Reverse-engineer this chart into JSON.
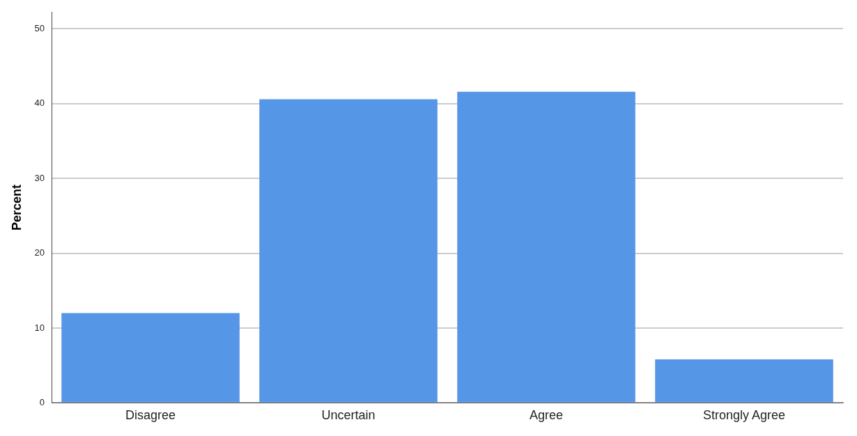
{
  "chart_data": {
    "type": "bar",
    "ylabel": "Percent",
    "categories": [
      "Disagree",
      "Uncertain",
      "Agree",
      "Strongly Agree"
    ],
    "values": [
      12.0,
      40.6,
      41.6,
      5.8
    ],
    "color": "#5596e6",
    "ylim": [
      0,
      52.2
    ],
    "yticks": [
      0,
      10,
      20,
      30,
      40,
      50
    ],
    "grid": "y",
    "legend": false
  }
}
